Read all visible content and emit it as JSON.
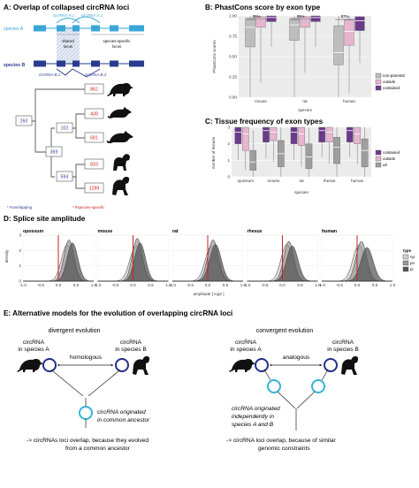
{
  "panel_a": {
    "title": "A: Overlap of collapsed circRNA loci",
    "species_a": "species A",
    "species_b": "species B",
    "circ_a1": "circRNA-A.1",
    "circ_a2": "circRNA-A.2",
    "circ_b1": "circRNA-B.1",
    "circ_b2": "circRNA-B.2",
    "shared_locus": [
      "shared",
      "locus"
    ],
    "specific_locus": [
      "species-specific",
      "locus"
    ],
    "tree_overlapping": [
      "260",
      "102",
      "369",
      "594"
    ],
    "tree_specific": [
      "862",
      "438",
      "681",
      "833",
      "1289"
    ],
    "legend_overlapping": "* #overlapping",
    "legend_specific": "* #species-specific"
  },
  "panel_b": {
    "title": "B: PhastCons score by exon type",
    "ylabel": "PhastCons scores",
    "xlabel": "species",
    "legend": [
      "non-parental",
      "outside",
      "contained"
    ],
    "pcts": [
      "85%",
      "95%",
      "87%"
    ]
  },
  "panel_c": {
    "title": "C: Tissue frequency of exon types",
    "ylabel": "number of tissues",
    "xlabel": "species",
    "legend": [
      "contained",
      "outside",
      "utr"
    ]
  },
  "panel_d": {
    "title": "D: Splice site amplitude",
    "ylabel": "density",
    "xlabel": "amplitude [ log2 ]",
    "legend_title": "type",
    "legend": [
      "np",
      "po",
      "pi"
    ]
  },
  "panel_e": {
    "title": "E: Alternative models for the evolution of overlapping circRNA loci",
    "div_title": "divergent evolution",
    "conv_title": "convergent evolution",
    "circ_a": [
      "circRNA",
      "in species A"
    ],
    "circ_b": [
      "circRNA",
      "in species B"
    ],
    "homologous": "homologous",
    "analogous": "analogous",
    "origin_common": [
      "circRNA originated",
      "in common ancestor"
    ],
    "origin_indep": [
      "circRNA originated",
      "independently in",
      "species A and B"
    ],
    "conclusion_div": [
      "-> circRNAs loci overlap, because they evolved",
      "from a common ancestor"
    ],
    "conclusion_conv": [
      "-> circRNA loci overlap, because of similar",
      "genomic constraints"
    ]
  },
  "chart_data": [
    {
      "type": "boxplot",
      "title": "B: PhastCons score by exon type",
      "categories": [
        "mouse",
        "rat",
        "human"
      ],
      "ylim": [
        0,
        1
      ],
      "yticks": [
        0,
        0.25,
        0.5,
        0.75,
        1
      ],
      "yticklabels": [
        "0.00",
        "0.25",
        "0.50",
        "0.75",
        "1.00"
      ],
      "series": [
        {
          "name": "non-parental",
          "q1": [
            0.62,
            0.7,
            0.4
          ],
          "median": [
            0.86,
            0.89,
            0.55
          ],
          "q3": [
            0.97,
            0.97,
            0.88
          ],
          "min": [
            0.0,
            0.0,
            0.0
          ],
          "max": [
            1.0,
            1.0,
            1.0
          ]
        },
        {
          "name": "outside",
          "q1": [
            0.86,
            0.86,
            0.64
          ],
          "median": [
            0.95,
            0.95,
            0.81
          ],
          "q3": [
            0.99,
            0.99,
            0.95
          ],
          "min": [
            0.18,
            0.3,
            0.05
          ],
          "max": [
            1.0,
            1.0,
            1.0
          ]
        },
        {
          "name": "contained",
          "q1": [
            0.93,
            0.93,
            0.82
          ],
          "median": [
            0.98,
            0.98,
            0.94
          ],
          "q3": [
            1.0,
            1.0,
            0.99
          ],
          "min": [
            0.62,
            0.62,
            0.42
          ],
          "max": [
            1.0,
            1.0,
            1.0
          ]
        }
      ]
    },
    {
      "type": "boxplot",
      "title": "C: Tissue frequency of exon types",
      "categories": [
        "opossum",
        "mouse",
        "rat",
        "rhesus",
        "human"
      ],
      "ylim": [
        0,
        3
      ],
      "yticks": [
        0,
        1,
        2,
        3
      ],
      "series": [
        {
          "name": "contained",
          "q1": [
            2.0,
            2.1,
            2.0,
            2.1,
            2.1
          ],
          "median": [
            2.7,
            2.8,
            2.7,
            2.8,
            2.8
          ],
          "q3": [
            3.0,
            3.0,
            3.0,
            3.0,
            3.0
          ],
          "min": [
            1.0,
            1.1,
            1.0,
            1.2,
            1.2
          ],
          "max": [
            3.0,
            3.0,
            3.0,
            3.0,
            3.0
          ]
        },
        {
          "name": "outside",
          "q1": [
            1.6,
            2.2,
            1.9,
            2.1,
            2.0
          ],
          "median": [
            2.6,
            2.7,
            2.6,
            2.7,
            2.6
          ],
          "q3": [
            3.0,
            3.0,
            3.0,
            3.0,
            3.0
          ],
          "min": [
            0.4,
            0.9,
            0.6,
            0.8,
            0.8
          ],
          "max": [
            3.0,
            3.0,
            3.0,
            3.0,
            3.0
          ]
        },
        {
          "name": "utr",
          "q1": [
            0.4,
            0.6,
            0.5,
            0.8,
            0.6
          ],
          "median": [
            0.9,
            1.4,
            1.2,
            1.8,
            1.6
          ],
          "q3": [
            1.6,
            2.2,
            2.0,
            2.4,
            2.3
          ],
          "min": [
            0.0,
            0.0,
            0.0,
            0.0,
            0.0
          ],
          "max": [
            2.8,
            3.0,
            3.0,
            3.0,
            3.0
          ]
        }
      ]
    },
    {
      "type": "area",
      "title": "D: Splice site amplitude",
      "facets": [
        "opossum",
        "mouse",
        "rat",
        "rhesus",
        "human"
      ],
      "xlabel": "amplitude [ log2 ]",
      "ylabel": "density",
      "xlim": [
        -1,
        1
      ],
      "xticks": [
        -1.0,
        -0.5,
        0.0,
        0.5,
        1.0
      ],
      "ylim": [
        0,
        3
      ],
      "yticks": [
        0,
        1,
        2,
        3
      ],
      "vline": 0,
      "series": [
        {
          "name": "np",
          "mean": [
            0.25,
            0.08,
            0.1,
            0.12,
            0.05
          ],
          "sd": [
            0.16,
            0.17,
            0.17,
            0.16,
            0.17
          ],
          "peak": [
            2.4,
            2.3,
            2.3,
            2.4,
            2.35
          ]
        },
        {
          "name": "po",
          "mean": [
            0.3,
            0.12,
            0.15,
            0.18,
            0.12
          ],
          "sd": [
            0.14,
            0.14,
            0.15,
            0.14,
            0.15
          ],
          "peak": [
            2.7,
            2.8,
            2.7,
            2.6,
            2.6
          ]
        },
        {
          "name": "pi",
          "mean": [
            0.4,
            0.2,
            0.22,
            0.28,
            0.28
          ],
          "sd": [
            0.15,
            0.15,
            0.16,
            0.16,
            0.17
          ],
          "peak": [
            2.5,
            2.5,
            2.4,
            2.3,
            2.2
          ]
        }
      ]
    }
  ],
  "colors": {
    "species_a": "#3aa7d8",
    "species_b": "#2a3b8f",
    "contained": "#6b3a8c",
    "outside": "#e8b5d0",
    "non_parental": "#bdbdbd",
    "utr": "#9e9e9e",
    "red": "#cc2222",
    "blue_text": "#2d3f9a",
    "ring_dark": "#232f8a",
    "ring_light": "#35b3d6"
  }
}
